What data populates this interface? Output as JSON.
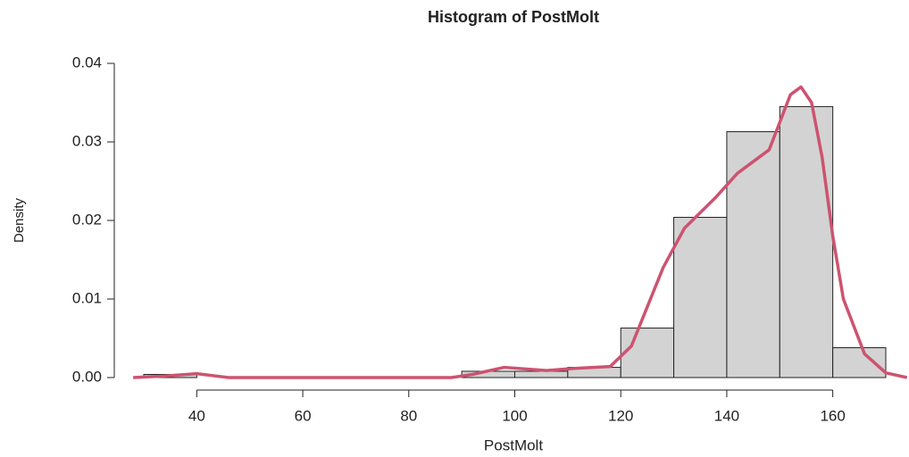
{
  "chart_data": {
    "type": "histogram",
    "title": "Histogram of PostMolt",
    "x_label": "PostMolt",
    "y_label": "Density",
    "bins": [
      30,
      40,
      50,
      60,
      70,
      80,
      90,
      100,
      110,
      120,
      130,
      140,
      150,
      160,
      170
    ],
    "values": [
      0.0004,
      0,
      0,
      0,
      0,
      0,
      0.0008,
      0.0008,
      0.0013,
      0.0063,
      0.0204,
      0.0313,
      0.0345,
      0.0038
    ],
    "color": "#d3d3d3",
    "series": [
      {
        "name": "density",
        "color": "#cd5370",
        "x": [
          28,
          34,
          40,
          46,
          60,
          88,
          92,
          98,
          106,
          112,
          118,
          122,
          128,
          132,
          138,
          142,
          148,
          152,
          154,
          156,
          158,
          160,
          162,
          166,
          170,
          174
        ],
        "values": [
          0,
          0.0002,
          0.0005,
          0,
          0,
          0,
          0.0004,
          0.0013,
          0.0009,
          0.0012,
          0.0014,
          0.004,
          0.014,
          0.019,
          0.023,
          0.026,
          0.029,
          0.036,
          0.037,
          0.035,
          0.028,
          0.018,
          0.01,
          0.003,
          0.0006,
          0
        ]
      }
    ],
    "xlim": [
      30,
      170
    ],
    "ylim": [
      0,
      0.04
    ],
    "xticks": [
      40,
      60,
      80,
      100,
      120,
      140,
      160
    ],
    "yticks": [
      {
        "value": 0,
        "label": "0.00"
      },
      {
        "value": 0.01,
        "label": "0.01"
      },
      {
        "value": 0.02,
        "label": "0.02"
      },
      {
        "value": 0.03,
        "label": "0.03"
      },
      {
        "value": 0.04,
        "label": "0.04"
      }
    ]
  }
}
